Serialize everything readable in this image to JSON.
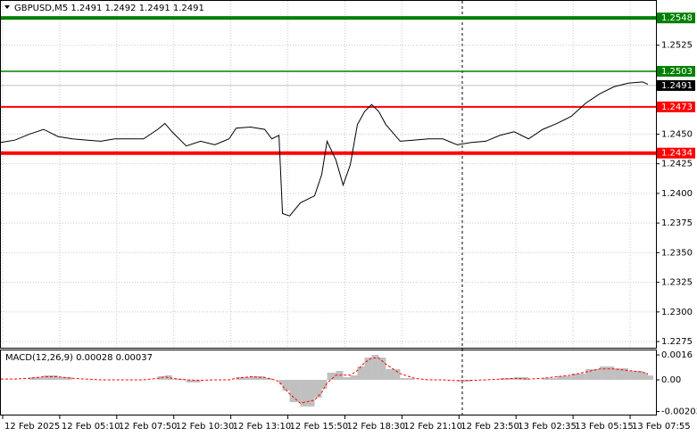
{
  "chart_data": [
    {
      "type": "line",
      "title": "GBPUSD,M5  1.2491 1.2492 1.2491 1.2491",
      "x": [
        0,
        8,
        16,
        24,
        32,
        40,
        48,
        56,
        64,
        72,
        80,
        88,
        92,
        96,
        104,
        112,
        120,
        128,
        132,
        140,
        148,
        152,
        156,
        158,
        162,
        168,
        176,
        180,
        183,
        188,
        192,
        196,
        200,
        204,
        208,
        212,
        216,
        224,
        232,
        240,
        248,
        256,
        264,
        272,
        280,
        288,
        296,
        304,
        312,
        320,
        328,
        336,
        344,
        352,
        360,
        363
      ],
      "values": [
        1.2443,
        1.2445,
        1.245,
        1.2454,
        1.2448,
        1.2446,
        1.2445,
        1.2444,
        1.2446,
        1.2446,
        1.2446,
        1.2454,
        1.2459,
        1.2452,
        1.244,
        1.2444,
        1.2441,
        1.2446,
        1.2455,
        1.2456,
        1.2454,
        1.2446,
        1.2449,
        1.2383,
        1.2381,
        1.2392,
        1.2398,
        1.2416,
        1.2444,
        1.2428,
        1.2407,
        1.2424,
        1.2458,
        1.2469,
        1.2475,
        1.2469,
        1.2458,
        1.2444,
        1.2445,
        1.2446,
        1.2446,
        1.2441,
        1.2443,
        1.2444,
        1.2449,
        1.2452,
        1.2446,
        1.2454,
        1.2459,
        1.2465,
        1.2476,
        1.2484,
        1.249,
        1.2493,
        1.2494,
        1.2492
      ],
      "color": "#000000",
      "xlim": [
        0,
        367.5
      ],
      "ylim": [
        1.22698,
        1.25624
      ],
      "xticks": [
        {
          "value": 1,
          "label": "12 Feb 2025"
        },
        {
          "value": 33,
          "label": "12 Feb 05:10"
        },
        {
          "value": 65,
          "label": "12 Feb 07:50"
        },
        {
          "value": 97,
          "label": "12 Feb 10:30"
        },
        {
          "value": 129,
          "label": "12 Feb 13:10"
        },
        {
          "value": 161,
          "label": "12 Feb 15:50"
        },
        {
          "value": 193,
          "label": "12 Feb 18:30"
        },
        {
          "value": 225,
          "label": "12 Feb 21:10"
        },
        {
          "value": 257,
          "label": "12 Feb 23:50"
        },
        {
          "value": 289,
          "label": "13 Feb 02:35"
        },
        {
          "value": 321,
          "label": "13 Feb 05:15"
        },
        {
          "value": 353,
          "label": "13 Feb 07:55"
        }
      ],
      "yticks": [
        1.2525,
        {
          "value": 1.245,
          "label": "1.2450"
        },
        1.2425,
        {
          "value": 1.24,
          "label": "1.2400"
        },
        1.2375,
        {
          "value": 1.235,
          "label": "1.2350"
        },
        1.2325,
        {
          "value": 1.23,
          "label": "1.2300"
        },
        1.2275
      ],
      "grid": true,
      "levels": [
        {
          "value": 1.2548,
          "color": "#008000",
          "width": 4
        },
        {
          "value": 1.2503,
          "color": "#008000",
          "width": 1.5
        },
        {
          "value": 1.2473,
          "color": "#ff0000",
          "width": 2
        },
        {
          "value": 1.2434,
          "color": "#ff0000",
          "width": 4
        }
      ],
      "current": {
        "value": 1.2491,
        "color": "#000000"
      }
    },
    {
      "type": "bar",
      "title": "MACD(12,26,9) 0.00028 0.00037",
      "x": [
        0,
        8,
        16,
        24,
        32,
        40,
        48,
        56,
        64,
        72,
        80,
        88,
        92,
        96,
        104,
        112,
        120,
        128,
        132,
        140,
        148,
        152,
        156,
        158,
        162,
        168,
        176,
        180,
        183,
        188,
        192,
        196,
        200,
        204,
        208,
        212,
        216,
        224,
        232,
        240,
        248,
        256,
        264,
        272,
        280,
        288,
        296,
        304,
        312,
        320,
        328,
        336,
        344,
        352,
        360,
        363
      ],
      "xlim": [
        0,
        367.5
      ],
      "ylim": [
        -0.00223,
        0.00189
      ],
      "yticks": [
        0.0016,
        {
          "value": 0,
          "label": "0.00"
        },
        -0.00203
      ],
      "series": [
        {
          "color": "#c0c0c0",
          "style": "bar",
          "values": [
            0,
            0,
            0.00017,
            0.00029,
            0.00017,
            0,
            0,
            0,
            0,
            0,
            0,
            0.00023,
            0.00029,
            6e-05,
            -0.00017,
            0,
            0,
            0,
            0.00017,
            0.00023,
            0.00011,
            0,
            -0.00029,
            -0.00069,
            -0.00143,
            -0.00171,
            -0.00114,
            -0.00057,
            0.00046,
            0.00057,
            0.00017,
            0.00029,
            0.00086,
            0.00143,
            0.0016,
            0.00143,
            0.00069,
            0.00011,
            0,
            0,
            0,
            -0.00011,
            0,
            0,
            0.00011,
            0.00017,
            0,
            0.00011,
            0.00023,
            0.0004,
            0.00069,
            0.00086,
            0.00074,
            0.00057,
            0.00046,
            0.00028
          ]
        },
        {
          "color": "#ff0000",
          "style": "dashed",
          "values": [
            5e-05,
            5e-05,
            0.0001,
            0.0002,
            0.0002,
            0.0001,
            5e-05,
            0,
            0,
            0,
            0,
            0.0001,
            0.0002,
            0.0001,
            0,
            -3e-05,
            0,
            0,
            0.0001,
            0.0002,
            0.00015,
            5e-05,
            -0.0001,
            -0.0004,
            -0.0009,
            -0.0015,
            -0.0013,
            -0.0008,
            -0.0002,
            0.0003,
            0.0003,
            0.0003,
            0.0006,
            0.0011,
            0.0014,
            0.0014,
            0.001,
            0.0004,
            0.0001,
            0,
            0,
            -5e-05,
            -3e-05,
            0,
            5e-05,
            0.0001,
            5e-05,
            0.0001,
            0.0002,
            0.0003,
            0.0005,
            0.0007,
            0.0007,
            0.0006,
            0.0005,
            0.00037
          ]
        }
      ]
    }
  ]
}
